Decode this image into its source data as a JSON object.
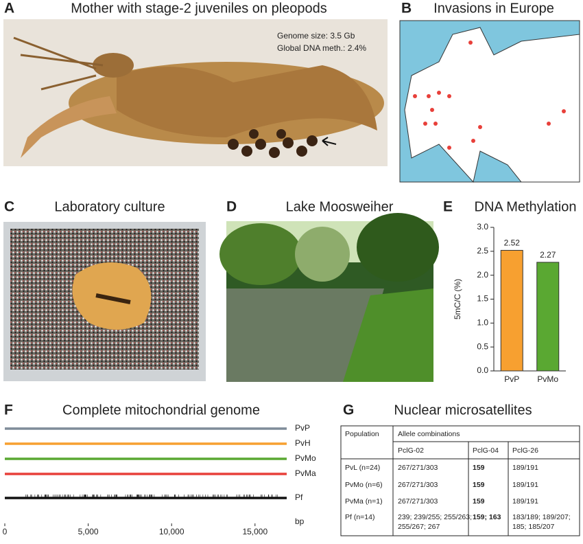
{
  "panels": {
    "A": {
      "letter": "A",
      "title": "Mother with stage-2 juveniles on pleopods",
      "notes": [
        "Genome size: 3.5 Gb",
        "Global DNA meth.: 2.4%"
      ]
    },
    "B": {
      "letter": "B",
      "title": "Invasions in Europe"
    },
    "C": {
      "letter": "C",
      "title": "Laboratory culture"
    },
    "D": {
      "letter": "D",
      "title": "Lake Moosweiher"
    },
    "G": {
      "letter": "G",
      "title": "Nuclear microsatellites",
      "table": {
        "header": [
          "Population",
          "Allele combinations"
        ],
        "subheader": [
          "PclG-02",
          "PclG-04",
          "PclG-26"
        ],
        "rows": [
          [
            [
              "PvL (n=24)"
            ],
            [
              "267/271/303"
            ],
            [
              "159"
            ],
            [
              "189/191"
            ]
          ],
          [
            [
              "PvMo (n=6)"
            ],
            [
              "267/271/303"
            ],
            [
              "159"
            ],
            [
              "189/191"
            ]
          ],
          [
            [
              "PvMa (n=1)"
            ],
            [
              "267/271/303"
            ],
            [
              "159"
            ],
            [
              "189/191"
            ]
          ],
          [
            [
              "Pf (n=14)"
            ],
            [
              "239; 239/255; 255/263;",
              "255/267; 267"
            ],
            [
              "159; 163"
            ],
            [
              "183/189; 189/207;",
              "185; 185/207"
            ]
          ]
        ]
      }
    }
  },
  "chart_data": [
    {
      "type": "bar",
      "panel": "E",
      "title": "DNA Methylation",
      "ylabel": "5mC/C (%)",
      "categories": [
        "PvP",
        "PvMo"
      ],
      "values": [
        2.52,
        2.27
      ],
      "colors": [
        "#f7a030",
        "#5aa832"
      ],
      "ylim": [
        0,
        3
      ],
      "yticks": [
        {
          "value": 0,
          "label": "0.0"
        },
        {
          "value": 0.5,
          "label": "0.5"
        },
        {
          "value": 1,
          "label": "1.0"
        },
        {
          "value": 1.5,
          "label": "1.5"
        },
        {
          "value": 2,
          "label": "2.0"
        },
        {
          "value": 2.5,
          "label": "2.5"
        },
        {
          "value": 3,
          "label": "3.0"
        }
      ]
    },
    {
      "type": "track",
      "panel": "F",
      "title": "Complete mitochondrial genome",
      "xlabel": "bp",
      "xlim": [
        0,
        16900
      ],
      "xticks": [
        0,
        {
          "value": 5000,
          "label": "5,000"
        },
        {
          "value": 10000,
          "label": "10,000"
        },
        {
          "value": 15000,
          "label": "15,000"
        }
      ],
      "series": [
        {
          "name": "PvP",
          "color": "#7f8c99"
        },
        {
          "name": "PvH",
          "color": "#f7a030"
        },
        {
          "name": "PvMo",
          "color": "#5aa832"
        },
        {
          "name": "PvMa",
          "color": "#e8403a"
        },
        {
          "name": "Pf",
          "color": "#111111"
        }
      ]
    }
  ]
}
